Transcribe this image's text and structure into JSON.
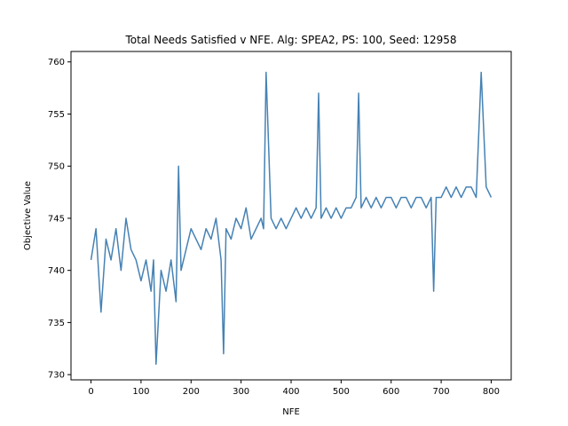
{
  "chart_data": {
    "type": "line",
    "title": "Total Needs Satisfied v NFE. Alg: SPEA2, PS: 100, Seed: 12958",
    "xlabel": "NFE",
    "ylabel": "Objective Value",
    "xlim": [
      -40,
      840
    ],
    "ylim": [
      729.5,
      761.0
    ],
    "xticks": [
      0,
      100,
      200,
      300,
      400,
      500,
      600,
      700,
      800
    ],
    "yticks": [
      730,
      735,
      740,
      745,
      750,
      755,
      760
    ],
    "grid": false,
    "line_color": "#4682b4",
    "series": [
      {
        "x": [
          0,
          10,
          20,
          30,
          40,
          50,
          60,
          70,
          80,
          90,
          100,
          110,
          120,
          125,
          130,
          140,
          150,
          160,
          170,
          175,
          180,
          190,
          200,
          210,
          220,
          230,
          240,
          250,
          260,
          265,
          270,
          280,
          290,
          300,
          310,
          320,
          330,
          340,
          345,
          350,
          360,
          370,
          380,
          390,
          400,
          410,
          420,
          430,
          440,
          450,
          455,
          460,
          470,
          480,
          490,
          500,
          510,
          520,
          530,
          535,
          540,
          550,
          560,
          570,
          580,
          590,
          600,
          610,
          620,
          630,
          640,
          650,
          660,
          670,
          680,
          685,
          690,
          700,
          710,
          720,
          730,
          740,
          750,
          760,
          770,
          780,
          790,
          800
        ],
        "values": [
          741,
          744,
          736,
          743,
          741,
          744,
          740,
          745,
          742,
          741,
          739,
          741,
          738,
          741,
          731,
          740,
          738,
          741,
          737,
          750,
          740,
          742,
          744,
          743,
          742,
          744,
          743,
          745,
          741,
          732,
          744,
          743,
          745,
          744,
          746,
          743,
          744,
          745,
          744,
          759,
          745,
          744,
          745,
          744,
          745,
          746,
          745,
          746,
          745,
          746,
          757,
          745,
          746,
          745,
          746,
          745,
          746,
          746,
          747,
          757,
          746,
          747,
          746,
          747,
          746,
          747,
          747,
          746,
          747,
          747,
          746,
          747,
          747,
          746,
          747,
          738,
          747,
          747,
          748,
          747,
          748,
          747,
          748,
          748,
          747,
          759,
          748,
          747
        ]
      }
    ]
  }
}
